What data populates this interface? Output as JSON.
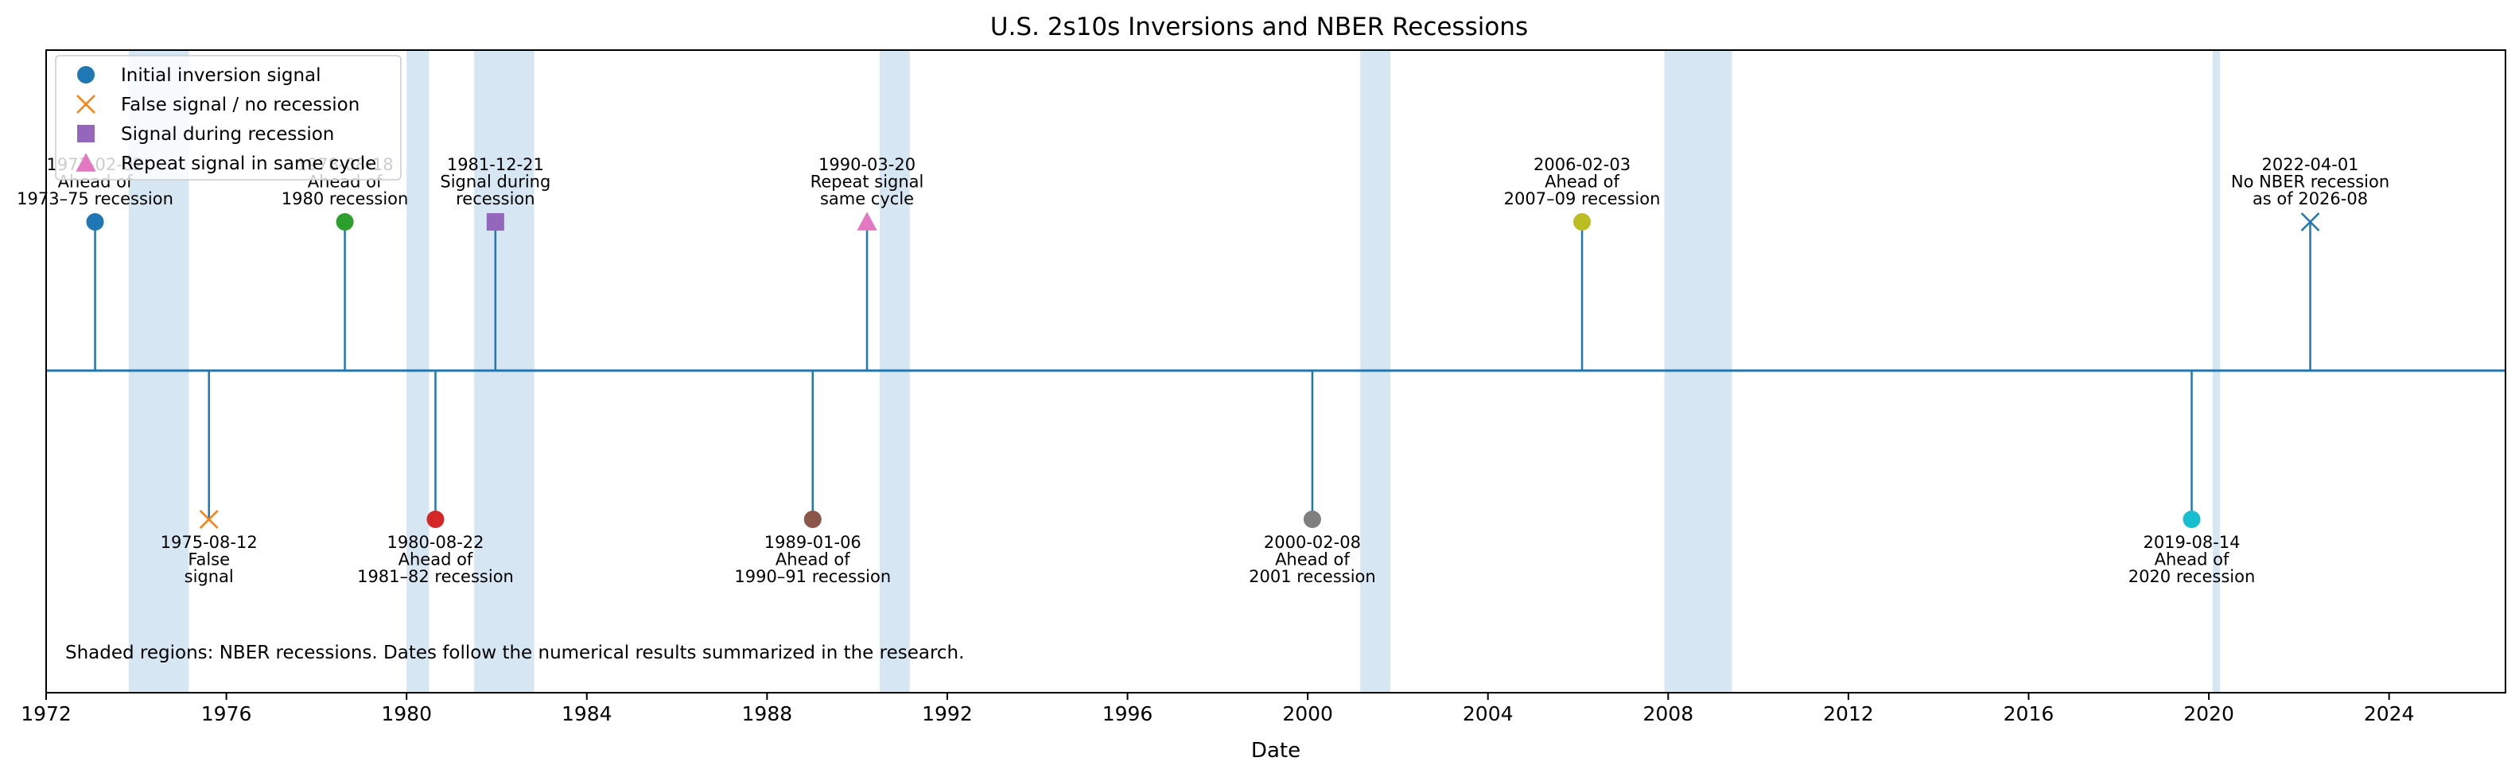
{
  "chart_data": {
    "type": "timeline",
    "title": "U.S. 2s10s Inversions and NBER Recessions",
    "xlabel": "Date",
    "xlim": [
      "1972-01-01",
      "2026-08-01"
    ],
    "x_ticks": [
      "1972",
      "1976",
      "1980",
      "1984",
      "1988",
      "1992",
      "1996",
      "2000",
      "2004",
      "2008",
      "2012",
      "2016",
      "2020",
      "2024"
    ],
    "grid": false,
    "recessions": [
      {
        "start": "1973-11-01",
        "end": "1975-03-01"
      },
      {
        "start": "1980-01-01",
        "end": "1980-07-01"
      },
      {
        "start": "1981-07-01",
        "end": "1982-11-01"
      },
      {
        "start": "1990-07-01",
        "end": "1991-03-01"
      },
      {
        "start": "2001-03-01",
        "end": "2001-11-01"
      },
      {
        "start": "2007-12-01",
        "end": "2009-06-01"
      },
      {
        "start": "2020-02-01",
        "end": "2020-04-01"
      }
    ],
    "events": [
      {
        "date": "1973-02-02",
        "side": "above",
        "category": "initial",
        "color": "#1f77b4",
        "label": [
          "1973-02-02",
          "Ahead of",
          "1973–75 recession"
        ]
      },
      {
        "date": "1975-08-12",
        "side": "below",
        "category": "false",
        "color": "#ff7f0e",
        "label": [
          "1975-08-12",
          "False",
          "signal"
        ]
      },
      {
        "date": "1978-08-18",
        "side": "above",
        "category": "initial",
        "color": "#2ca02c",
        "label": [
          "1978-08-18",
          "Ahead of",
          "1980 recession"
        ]
      },
      {
        "date": "1980-08-22",
        "side": "below",
        "category": "initial",
        "color": "#d62728",
        "label": [
          "1980-08-22",
          "Ahead of",
          "1981–82 recession"
        ]
      },
      {
        "date": "1981-12-21",
        "side": "above",
        "category": "during",
        "color": "#9467bd",
        "label": [
          "1981-12-21",
          "Signal during",
          "recession"
        ]
      },
      {
        "date": "1989-01-06",
        "side": "below",
        "category": "initial",
        "color": "#8c564b",
        "label": [
          "1989-01-06",
          "Ahead of",
          "1990–91 recession"
        ]
      },
      {
        "date": "1990-03-20",
        "side": "above",
        "category": "repeat",
        "color": "#e377c2",
        "label": [
          "1990-03-20",
          "Repeat signal",
          "same cycle"
        ]
      },
      {
        "date": "2000-02-08",
        "side": "below",
        "category": "initial",
        "color": "#7f7f7f",
        "label": [
          "2000-02-08",
          "Ahead of",
          "2001 recession"
        ]
      },
      {
        "date": "2006-02-03",
        "side": "above",
        "category": "initial",
        "color": "#bcbd22",
        "label": [
          "2006-02-03",
          "Ahead of",
          "2007–09 recession"
        ]
      },
      {
        "date": "2019-08-14",
        "side": "below",
        "category": "initial",
        "color": "#17becf",
        "label": [
          "2019-08-14",
          "Ahead of",
          "2020 recession"
        ]
      },
      {
        "date": "2022-04-01",
        "side": "above",
        "category": "false",
        "color": "#1f77b4",
        "label": [
          "2022-04-01",
          "No NBER recession",
          "as of 2026-08"
        ]
      }
    ],
    "legend": {
      "placement": "top-left",
      "entries": [
        {
          "label": "Initial inversion signal",
          "marker": "circle",
          "color": "#1f77b4"
        },
        {
          "label": "False signal / no recession",
          "marker": "x",
          "color": "#ff7f0e"
        },
        {
          "label": "Signal during recession",
          "marker": "square",
          "color": "#9467bd"
        },
        {
          "label": "Repeat signal in same cycle",
          "marker": "triangle",
          "color": "#e377c2"
        }
      ]
    },
    "annotation": "Shaded regions: NBER recessions. Dates follow the numerical results summarized in the research.",
    "colors": {
      "recession_shade": "#d6e6f2",
      "baseline": "#1f77b4"
    }
  }
}
